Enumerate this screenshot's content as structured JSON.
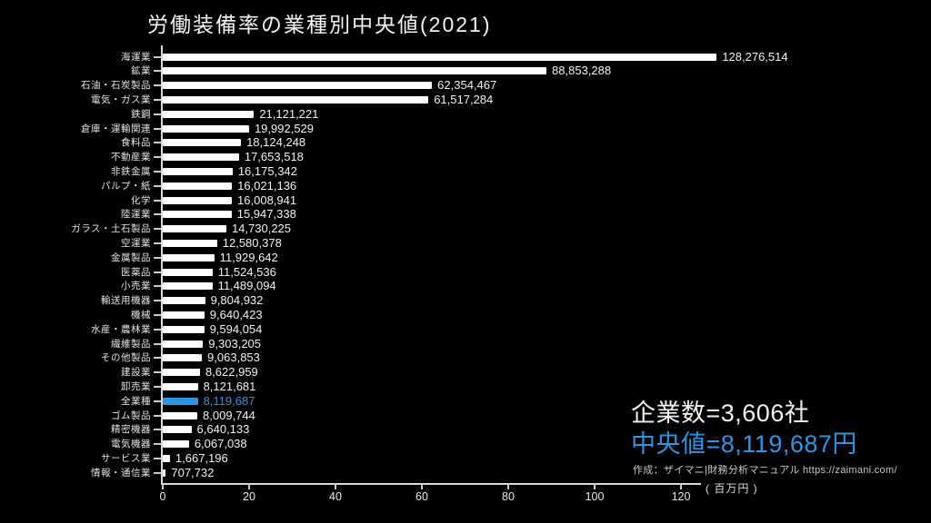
{
  "title": "労働装備率の業種別中央値(2021)",
  "colors": {
    "background": "#000000",
    "bar": "#ffffff",
    "highlight": "#2d96e4",
    "axis": "#d9d9d9",
    "text": "#f2f2f2"
  },
  "chart_data": {
    "type": "bar",
    "orientation": "horizontal",
    "title": "労働装備率の業種別中央値(2021)",
    "xlabel": "( 百万円 )",
    "ylabel": "",
    "x_unit": "百万円",
    "xlim": [
      0,
      130
    ],
    "x_ticks": [
      0,
      20,
      40,
      60,
      80,
      100,
      120
    ],
    "grid": false,
    "legend": false,
    "highlight_index": 24,
    "categories": [
      "海運業",
      "鉱業",
      "石油・石炭製品",
      "電気・ガス業",
      "鉄鋼",
      "倉庫・運輸関連",
      "食料品",
      "不動産業",
      "非鉄金属",
      "パルプ・紙",
      "化学",
      "陸運業",
      "ガラス・土石製品",
      "空運業",
      "金属製品",
      "医薬品",
      "小売業",
      "輸送用機器",
      "機械",
      "水産・農林業",
      "繊維製品",
      "その他製品",
      "建設業",
      "卸売業",
      "全業種",
      "ゴム製品",
      "精密機器",
      "電気機器",
      "サービス業",
      "情報・通信業"
    ],
    "values": [
      128276514,
      88853288,
      62354467,
      61517284,
      21121221,
      19992529,
      18124248,
      17653518,
      16175342,
      16021136,
      16008941,
      15947338,
      14730225,
      12580378,
      11929642,
      11524536,
      11489094,
      9804932,
      9640423,
      9594054,
      9303205,
      9063853,
      8622959,
      8121681,
      8119687,
      8009744,
      6640133,
      6067038,
      1667196,
      707732
    ],
    "value_labels": [
      "128,276,514",
      "88,853,288",
      "62,354,467",
      "61,517,284",
      "21,121,221",
      "19,992,529",
      "18,124,248",
      "17,653,518",
      "16,175,342",
      "16,021,136",
      "16,008,941",
      "15,947,338",
      "14,730,225",
      "12,580,378",
      "11,929,642",
      "11,524,536",
      "11,489,094",
      "9,804,932",
      "9,640,423",
      "9,594,054",
      "9,303,205",
      "9,063,853",
      "8,622,959",
      "8,121,681",
      "8,119,687",
      "8,009,744",
      "6,640,133",
      "6,067,038",
      "1,667,196",
      "707,732"
    ]
  },
  "annotations": {
    "company_count": "企業数=3,606社",
    "median": "中央値=8,119,687円",
    "credit": "作成：ザイマニ|財務分析マニュアル https://zaimani.com/"
  }
}
